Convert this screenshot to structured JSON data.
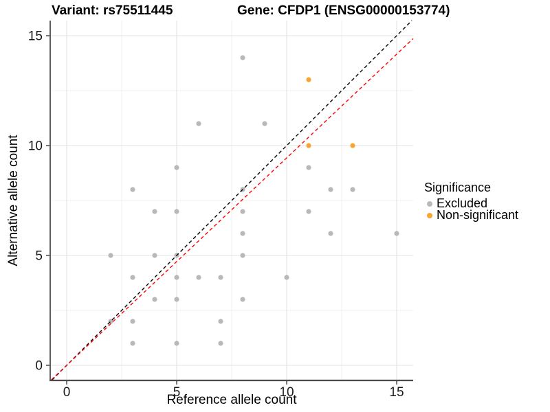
{
  "chart_data": {
    "type": "scatter",
    "titles": {
      "left": "Variant: rs75511445",
      "right": "Gene: CFDP1 (ENSG00000153774)"
    },
    "xlabel": "Reference allele count",
    "ylabel": "Alternative allele count",
    "x_ticks": [
      0,
      5,
      10,
      15
    ],
    "y_ticks": [
      0,
      5,
      10,
      15
    ],
    "x_minor": [
      2.5,
      7.5,
      12.5
    ],
    "y_minor": [
      2.5,
      7.5,
      12.5
    ],
    "xlim": [
      -0.75,
      15.75
    ],
    "ylim": [
      -0.66,
      15.69
    ],
    "grid": true,
    "point_radius": 3.6,
    "series": [
      {
        "name": "Excluded",
        "color": "#b9b9b9",
        "points": [
          [
            8,
            14
          ],
          [
            6,
            11
          ],
          [
            9,
            11
          ],
          [
            5,
            9
          ],
          [
            11,
            9
          ],
          [
            3,
            8
          ],
          [
            8,
            8
          ],
          [
            12,
            8
          ],
          [
            13,
            8
          ],
          [
            4,
            7
          ],
          [
            5,
            7
          ],
          [
            8,
            7
          ],
          [
            11,
            7
          ],
          [
            8,
            6
          ],
          [
            12,
            6
          ],
          [
            15,
            6
          ],
          [
            2,
            5
          ],
          [
            4,
            5
          ],
          [
            5,
            5
          ],
          [
            8,
            5
          ],
          [
            3,
            4
          ],
          [
            5,
            4
          ],
          [
            6,
            4
          ],
          [
            7,
            4
          ],
          [
            10,
            4
          ],
          [
            4,
            3
          ],
          [
            5,
            3
          ],
          [
            8,
            3
          ],
          [
            2,
            2
          ],
          [
            3,
            2
          ],
          [
            7,
            2
          ],
          [
            3,
            1
          ],
          [
            5,
            1
          ],
          [
            7,
            1
          ]
        ]
      },
      {
        "name": "Non-significant",
        "color": "#F9A532",
        "points": [
          [
            11,
            13
          ],
          [
            11,
            10
          ],
          [
            13,
            10
          ]
        ]
      }
    ],
    "ref_lines": [
      {
        "name": "identity-line",
        "style": "dashed",
        "color": "#000000",
        "slope": 1.0,
        "intercept": 0
      },
      {
        "name": "fit-line",
        "style": "dashed",
        "color": "#FF0000",
        "slope": 0.944,
        "intercept": 0
      }
    ],
    "legend": {
      "title": "Significance",
      "position": "right",
      "entries": [
        {
          "label": "Excluded",
          "color": "#b9b9b9"
        },
        {
          "label": "Non-significant",
          "color": "#F9A532"
        }
      ]
    }
  }
}
